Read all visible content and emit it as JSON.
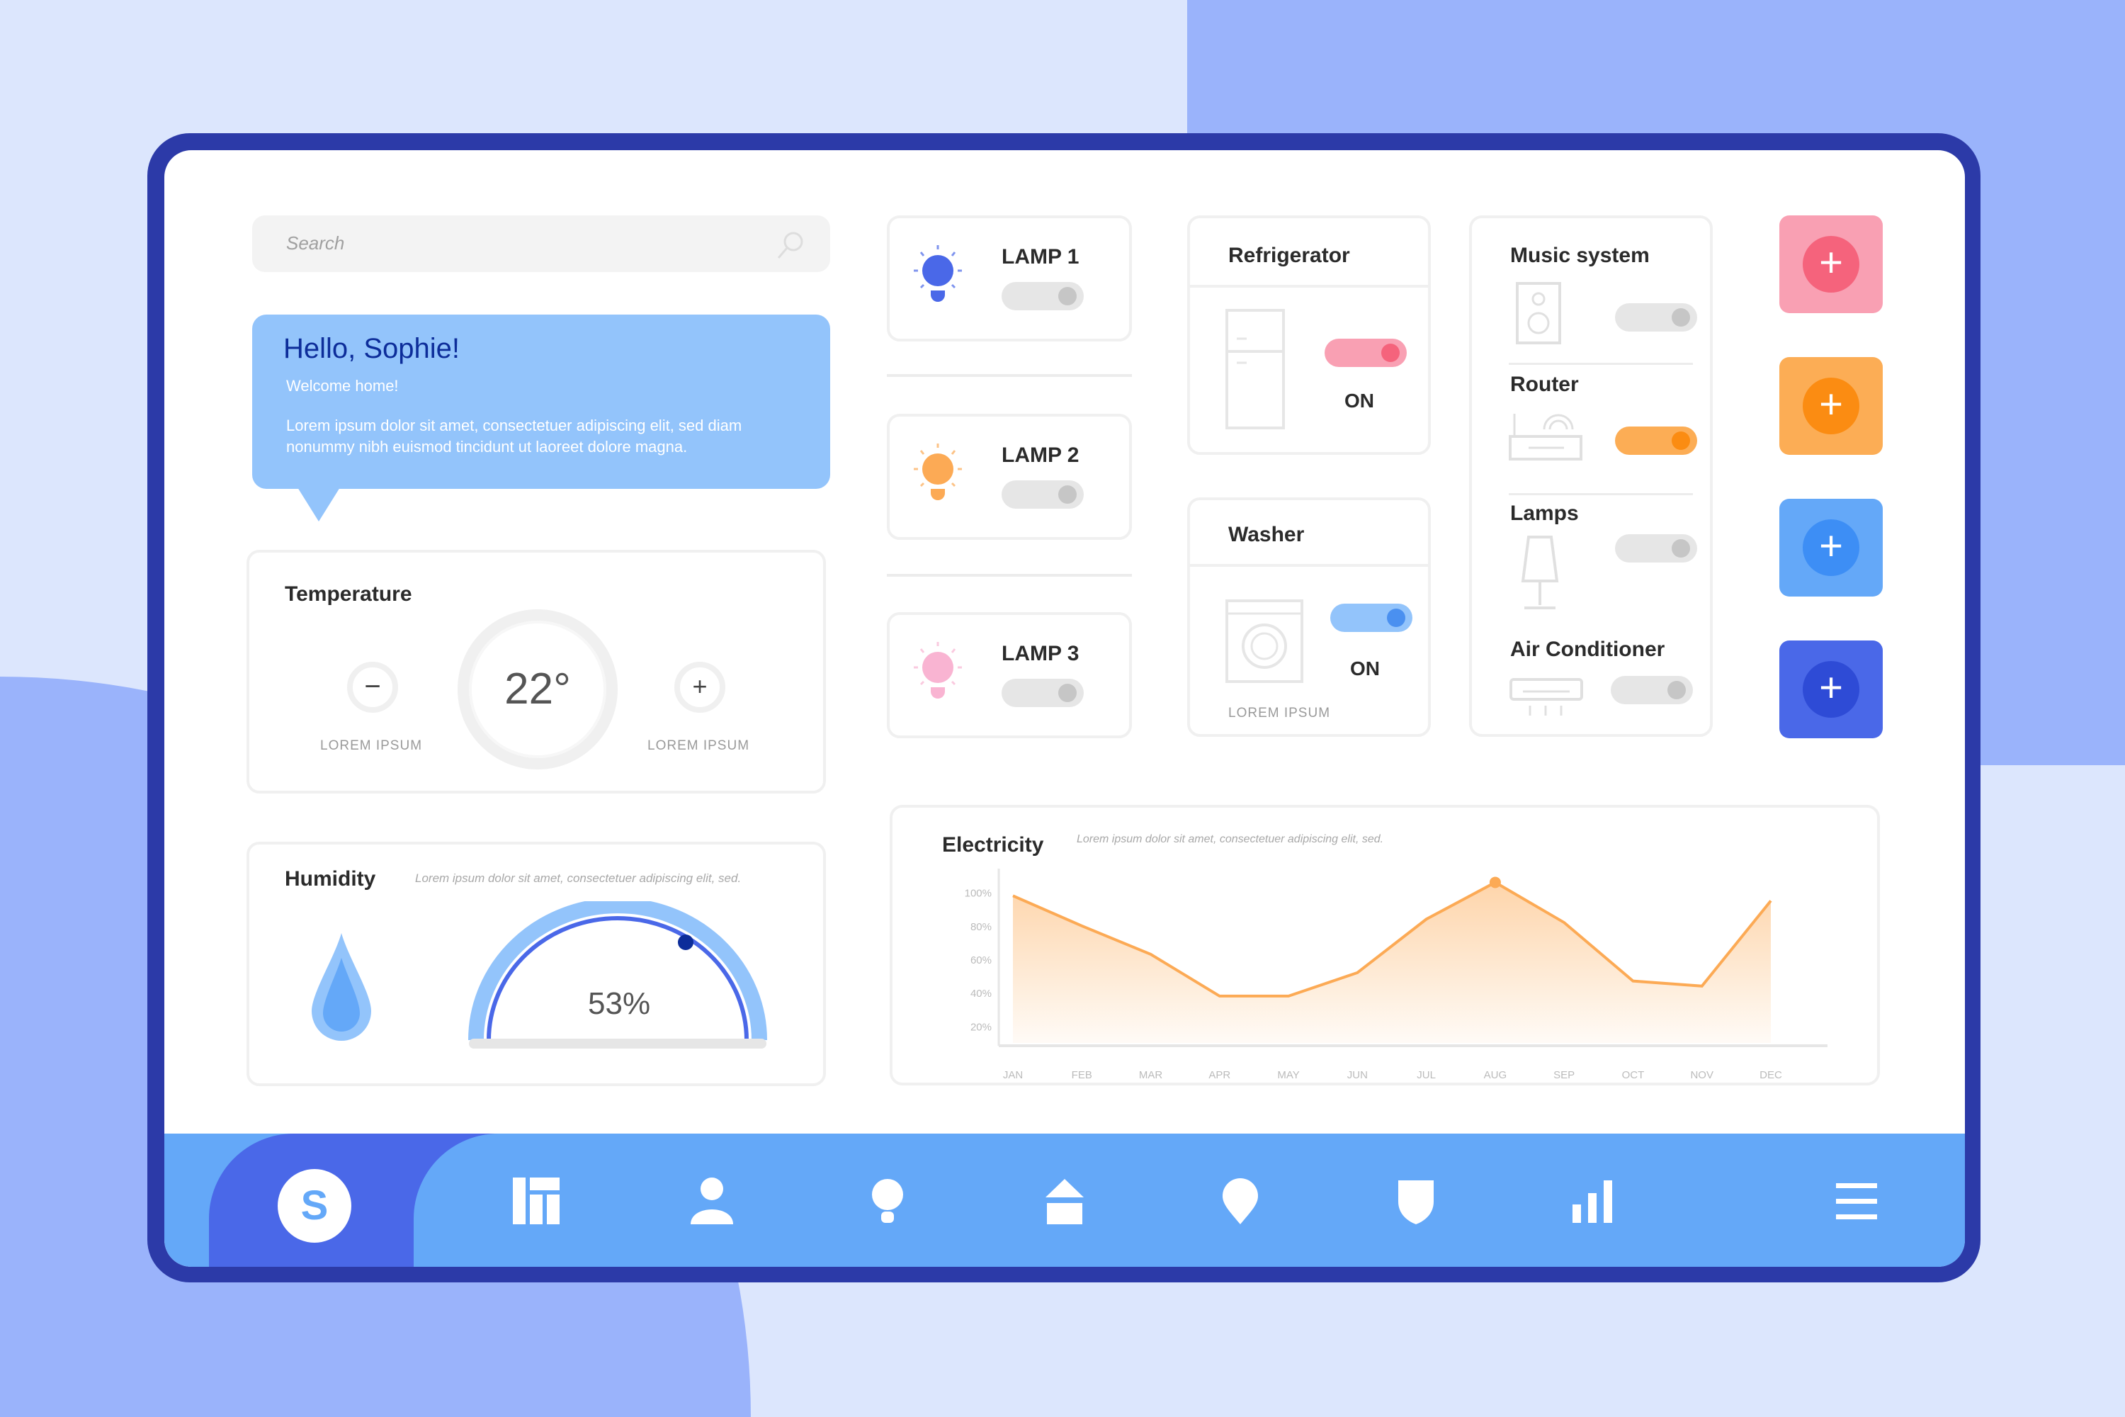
{
  "search": {
    "placeholder": "Search",
    "icon": "search-icon"
  },
  "greeting": {
    "title": "Hello, Sophie!",
    "subtitle": "Welcome home!",
    "body": "Lorem ipsum dolor sit amet, consectetuer adipiscing elit, sed diam nonummy nibh euismod tincidunt ut laoreet dolore magna."
  },
  "temperature": {
    "title": "Temperature",
    "value": "22°",
    "minus_label": "LOREM IPSUM",
    "plus_label": "LOREM IPSUM"
  },
  "humidity": {
    "title": "Humidity",
    "description": "Lorem ipsum dolor sit amet, consectetuer adipiscing elit, sed.",
    "value": "53%",
    "level": 53
  },
  "lamps": [
    {
      "label": "LAMP 1",
      "color": "#4a68e8",
      "on": false
    },
    {
      "label": "LAMP 2",
      "color": "#fcaa55",
      "on": false
    },
    {
      "label": "LAMP 3",
      "color": "#f9b4d2",
      "on": false
    }
  ],
  "refrigerator": {
    "title": "Refrigerator",
    "status": "ON",
    "on": true,
    "color": "#f5828f"
  },
  "washer": {
    "title": "Washer",
    "status": "ON",
    "footer": "LOREM IPSUM",
    "on": true,
    "color": "#6aaaf8"
  },
  "devices": [
    {
      "label": "Music system",
      "on": false
    },
    {
      "label": "Router",
      "on": true,
      "color": "#fca440"
    },
    {
      "label": "Lamps",
      "on": false
    },
    {
      "label": "Air Conditioner",
      "on": false
    }
  ],
  "add_buttons": [
    {
      "color": "#f9a0b3",
      "inner": "#f5637c"
    },
    {
      "color": "#fcad55",
      "inner": "#fb8c12"
    },
    {
      "color": "#64a8f8",
      "inner": "#3d8ef5"
    },
    {
      "color": "#4a68e8",
      "inner": "#2e4bd6"
    }
  ],
  "electricity": {
    "title": "Electricity",
    "description": "Lorem ipsum dolor sit amet, consectetuer adipiscing elit, sed."
  },
  "chart_data": {
    "type": "area",
    "title": "Electricity",
    "categories": [
      "JAN",
      "FEB",
      "MAR",
      "APR",
      "MAY",
      "JUN",
      "JUL",
      "AUG",
      "SEP",
      "OCT",
      "NOV",
      "DEC"
    ],
    "values": [
      98,
      80,
      63,
      38,
      38,
      52,
      84,
      106,
      82,
      47,
      44,
      95
    ],
    "yticks": [
      "100%",
      "80%",
      "60%",
      "40%",
      "20%"
    ],
    "ylim": [
      10,
      110
    ],
    "highlight": "AUG",
    "color": "#fcaa55",
    "grid": false
  },
  "nav": {
    "avatar_letter": "S",
    "items": [
      "dashboard-icon",
      "user-icon",
      "bulb-icon",
      "home-icon",
      "location-icon",
      "shield-icon",
      "chart-icon",
      "menu-icon"
    ]
  }
}
